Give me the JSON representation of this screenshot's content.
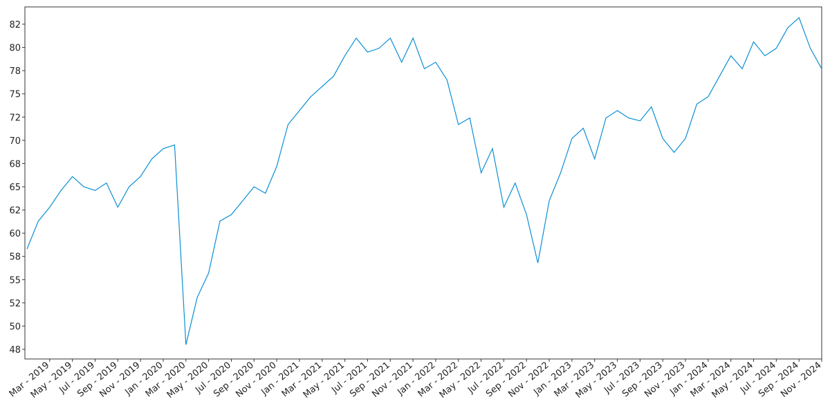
{
  "chart_data": {
    "type": "line",
    "x": [
      "2019-01",
      "2019-02",
      "2019-03",
      "2019-04",
      "2019-05",
      "2019-06",
      "2019-07",
      "2019-08",
      "2019-09",
      "2019-10",
      "2019-11",
      "2019-12",
      "2020-01",
      "2020-02",
      "2020-03",
      "2020-04",
      "2020-05",
      "2020-06",
      "2020-07",
      "2020-08",
      "2020-09",
      "2020-10",
      "2020-11",
      "2020-12",
      "2021-01",
      "2021-02",
      "2021-03",
      "2021-04",
      "2021-05",
      "2021-06",
      "2021-07",
      "2021-08",
      "2021-09",
      "2021-10",
      "2021-11",
      "2021-12",
      "2022-01",
      "2022-02",
      "2022-03",
      "2022-04",
      "2022-05",
      "2022-06",
      "2022-07",
      "2022-08",
      "2022-09",
      "2022-10",
      "2022-11",
      "2022-12",
      "2023-01",
      "2023-02",
      "2023-03",
      "2023-04",
      "2023-05",
      "2023-06",
      "2023-07",
      "2023-08",
      "2023-09",
      "2023-10",
      "2023-11",
      "2023-12",
      "2024-01",
      "2024-02",
      "2024-03",
      "2024-04",
      "2024-05",
      "2024-06",
      "2024-07",
      "2024-08",
      "2024-09",
      "2024-10",
      "2024-11"
    ],
    "series": [
      {
        "color": "#0a8fd4",
        "values": [
          58.3,
          61.3,
          62.8,
          64.6,
          66.1,
          65.0,
          64.6,
          65.4,
          62.8,
          65.0,
          66.1,
          68.0,
          69.1,
          69.5,
          48.0,
          53.1,
          55.7,
          61.3,
          62.0,
          63.5,
          65.0,
          64.3,
          67.2,
          71.7,
          73.2,
          74.7,
          75.8,
          76.9,
          79.1,
          81.0,
          79.5,
          79.9,
          81.0,
          78.4,
          81.0,
          77.7,
          78.4,
          76.5,
          71.7,
          72.4,
          66.5,
          69.1,
          62.8,
          65.4,
          62.0,
          56.8,
          63.5,
          66.5,
          70.2,
          71.3,
          68.0,
          72.4,
          73.2,
          72.4,
          72.1,
          73.6,
          70.2,
          68.7,
          70.2,
          73.9,
          74.7,
          76.9,
          79.1,
          77.7,
          80.6,
          79.1,
          79.9,
          82.1,
          83.2,
          79.9,
          77.7
        ]
      }
    ],
    "xlim": [
      "2019-01",
      "2024-11"
    ],
    "xticks": [
      {
        "value": "2019-03",
        "label": "Mar - 2019"
      },
      {
        "value": "2019-05",
        "label": "May - 2019"
      },
      {
        "value": "2019-07",
        "label": "Jul - 2019"
      },
      {
        "value": "2019-09",
        "label": "Sep - 2019"
      },
      {
        "value": "2019-11",
        "label": "Nov - 2019"
      },
      {
        "value": "2020-01",
        "label": "Jan - 2020"
      },
      {
        "value": "2020-03",
        "label": "Mar - 2020"
      },
      {
        "value": "2020-05",
        "label": "May - 2020"
      },
      {
        "value": "2020-07",
        "label": "Jul - 2020"
      },
      {
        "value": "2020-09",
        "label": "Sep - 2020"
      },
      {
        "value": "2020-11",
        "label": "Nov - 2020"
      },
      {
        "value": "2021-01",
        "label": "Jan - 2021"
      },
      {
        "value": "2021-03",
        "label": "Mar - 2021"
      },
      {
        "value": "2021-05",
        "label": "May - 2021"
      },
      {
        "value": "2021-07",
        "label": "Jul - 2021"
      },
      {
        "value": "2021-09",
        "label": "Sep - 2021"
      },
      {
        "value": "2021-11",
        "label": "Nov - 2021"
      },
      {
        "value": "2022-01",
        "label": "Jan - 2022"
      },
      {
        "value": "2022-03",
        "label": "Mar - 2022"
      },
      {
        "value": "2022-05",
        "label": "May - 2022"
      },
      {
        "value": "2022-07",
        "label": "Jul - 2022"
      },
      {
        "value": "2022-09",
        "label": "Sep - 2022"
      },
      {
        "value": "2022-11",
        "label": "Nov - 2022"
      },
      {
        "value": "2023-01",
        "label": "Jan - 2023"
      },
      {
        "value": "2023-03",
        "label": "Mar - 2023"
      },
      {
        "value": "2023-05",
        "label": "May - 2023"
      },
      {
        "value": "2023-07",
        "label": "Jul - 2023"
      },
      {
        "value": "2023-09",
        "label": "Sep - 2023"
      },
      {
        "value": "2023-11",
        "label": "Nov - 2023"
      },
      {
        "value": "2024-01",
        "label": "Jan - 2024"
      },
      {
        "value": "2024-03",
        "label": "Mar - 2024"
      },
      {
        "value": "2024-05",
        "label": "May - 2024"
      },
      {
        "value": "2024-07",
        "label": "Jul - 2024"
      },
      {
        "value": "2024-09",
        "label": "Sep - 2024"
      },
      {
        "value": "2024-11",
        "label": "Nov - 2024"
      }
    ],
    "ylim": [
      46.46,
      84.36
    ],
    "yticks": [
      {
        "value": 47.5,
        "label": "48"
      },
      50,
      {
        "value": 52.5,
        "label": "52"
      },
      55,
      {
        "value": 57.5,
        "label": "58"
      },
      60,
      {
        "value": 62.5,
        "label": "62"
      },
      65,
      {
        "value": 67.5,
        "label": "68"
      },
      70,
      {
        "value": 72.5,
        "label": "72"
      },
      75,
      {
        "value": 77.5,
        "label": "78"
      },
      80,
      {
        "value": 82.5,
        "label": "82"
      }
    ],
    "grid": false
  }
}
